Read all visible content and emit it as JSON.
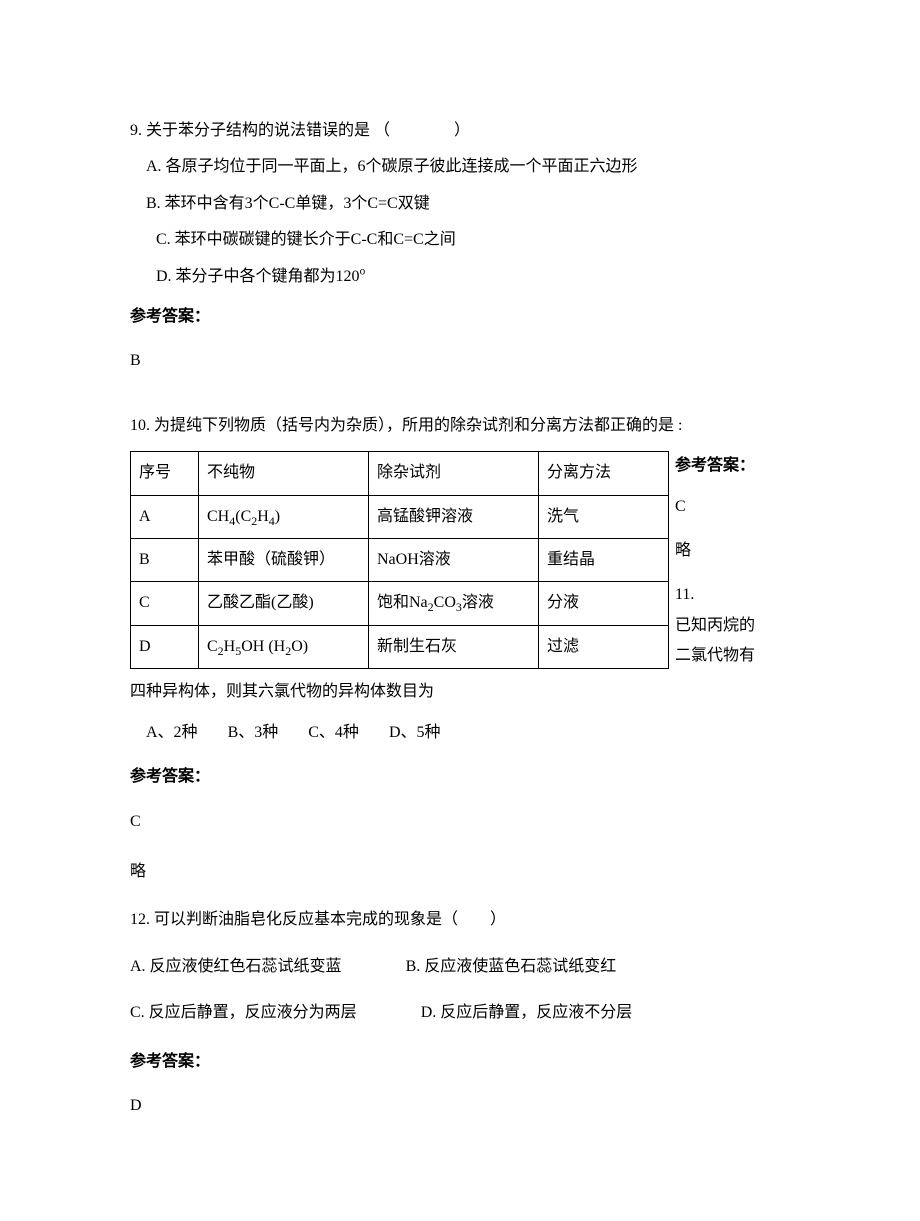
{
  "q9": {
    "stem": "9. 关于苯分子结构的说法错误的是 （　　　　）",
    "A": "A. 各原子均位于同一平面上，6个碳原子彼此连接成一个平面正六边形",
    "B": "B. 苯环中含有3个C-C单键，3个C=C双键",
    "C": "C. 苯环中碳碳键的键长介于C-C和C=C之间",
    "D_prefix": "D. 苯分子中各个键角都为120",
    "D_sup": "o",
    "ans_label": "参考答案：",
    "ans": "B"
  },
  "q10": {
    "stem": "10. 为提纯下列物质（括号内为杂质），所用的除杂试剂和分离方法都正确的是 :",
    "table": {
      "headers": [
        "序号",
        "不纯物",
        "除杂试剂",
        "分离方法"
      ],
      "rows": [
        {
          "no": "A",
          "impure_html": "CH<sub>4</sub>(C<sub>2</sub>H<sub>4</sub>)",
          "reagent": "高锰酸钾溶液",
          "method": "洗气"
        },
        {
          "no": "B",
          "impure_html": "苯甲酸（硫酸钾）",
          "reagent": "NaOH溶液",
          "method": "重结晶"
        },
        {
          "no": "C",
          "impure_html": "乙酸乙酯(乙酸)",
          "reagent_html": "饱和Na<sub>2</sub>CO<sub>3</sub>溶液",
          "method": "分液"
        },
        {
          "no": "D",
          "impure_html": "C<sub>2</sub>H<sub>5</sub>OH (H<sub>2</sub>O)",
          "reagent": "新制生石灰",
          "method": "过滤"
        }
      ]
    },
    "ans_label": "参考答案：",
    "ans": "C",
    "brief": "略"
  },
  "q11": {
    "stem_part1": "11.",
    "stem_part2": "已知丙烷的",
    "stem_part3": "二氯代物有",
    "stem_cont": "四种异构体，则其六氯代物的异构体数目为",
    "opts": {
      "A": "A、2种",
      "B": "B、3种",
      "C": "C、4种",
      "D": "D、5种"
    },
    "ans_label": "参考答案：",
    "ans": "C",
    "brief": "略"
  },
  "q12": {
    "stem": "12. 可以判断油脂皂化反应基本完成的现象是（　　）",
    "A": "A. 反应液使红色石蕊试纸变蓝",
    "B": "B. 反应液使蓝色石蕊试纸变红",
    "C": "C. 反应后静置，反应液分为两层",
    "D": "D. 反应后静置，反应液不分层",
    "ans_label": "参考答案：",
    "ans": "D"
  }
}
